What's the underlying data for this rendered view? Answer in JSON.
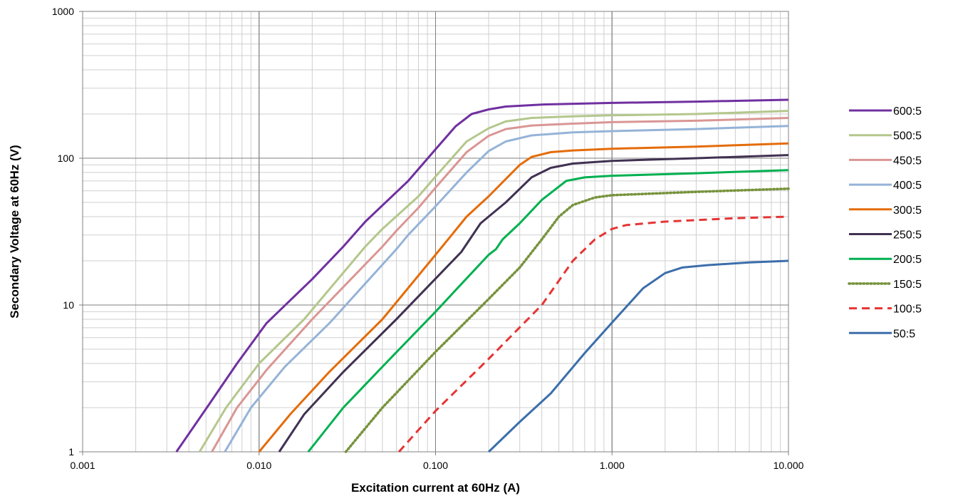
{
  "chart_data": {
    "type": "line",
    "title": "",
    "xlabel": "Excitation current at 60Hz (A)",
    "ylabel": "Secondary Voltage at 60Hz (V)",
    "x_scale": "log",
    "y_scale": "log",
    "xlim": [
      0.001,
      10
    ],
    "ylim": [
      1,
      1000
    ],
    "grid": true,
    "legend_position": "right",
    "x_ticks": [
      {
        "value": 0.001,
        "label": "0.001"
      },
      {
        "value": 0.01,
        "label": "0.010"
      },
      {
        "value": 0.1,
        "label": "0.100"
      },
      {
        "value": 1,
        "label": "1.000"
      },
      {
        "value": 10,
        "label": "10.000"
      }
    ],
    "y_ticks": [
      {
        "value": 1,
        "label": "1"
      },
      {
        "value": 10,
        "label": "10"
      },
      {
        "value": 100,
        "label": "100"
      },
      {
        "value": 1000,
        "label": "1000"
      }
    ],
    "series": [
      {
        "name": "600:5",
        "color": "#7030A0",
        "dash": "solid",
        "points": [
          [
            0.0034,
            1
          ],
          [
            0.0052,
            2.1
          ],
          [
            0.0075,
            4
          ],
          [
            0.011,
            7.5
          ],
          [
            0.02,
            15
          ],
          [
            0.03,
            25
          ],
          [
            0.04,
            37
          ],
          [
            0.07,
            70
          ],
          [
            0.1,
            115
          ],
          [
            0.13,
            165
          ],
          [
            0.16,
            200
          ],
          [
            0.2,
            215
          ],
          [
            0.25,
            225
          ],
          [
            0.4,
            232
          ],
          [
            1,
            238
          ],
          [
            3,
            243
          ],
          [
            10,
            250
          ]
        ]
      },
      {
        "name": "500:5",
        "color": "#B4C78C",
        "dash": "solid",
        "points": [
          [
            0.0046,
            1
          ],
          [
            0.0065,
            2
          ],
          [
            0.01,
            4
          ],
          [
            0.018,
            8
          ],
          [
            0.04,
            25
          ],
          [
            0.05,
            33
          ],
          [
            0.08,
            55
          ],
          [
            0.1,
            75
          ],
          [
            0.15,
            130
          ],
          [
            0.2,
            160
          ],
          [
            0.25,
            178
          ],
          [
            0.35,
            188
          ],
          [
            0.6,
            193
          ],
          [
            1,
            196
          ],
          [
            3,
            200
          ],
          [
            10,
            210
          ]
        ]
      },
      {
        "name": "450:5",
        "color": "#D99694",
        "dash": "solid",
        "points": [
          [
            0.0054,
            1
          ],
          [
            0.0075,
            2
          ],
          [
            0.011,
            3.6
          ],
          [
            0.02,
            8
          ],
          [
            0.05,
            25
          ],
          [
            0.06,
            32
          ],
          [
            0.08,
            46
          ],
          [
            0.1,
            63
          ],
          [
            0.15,
            110
          ],
          [
            0.2,
            142
          ],
          [
            0.25,
            158
          ],
          [
            0.35,
            167
          ],
          [
            0.6,
            172
          ],
          [
            1,
            176
          ],
          [
            3,
            180
          ],
          [
            10,
            188
          ]
        ]
      },
      {
        "name": "400:5",
        "color": "#95B3D7",
        "dash": "solid",
        "points": [
          [
            0.0064,
            1
          ],
          [
            0.009,
            2
          ],
          [
            0.014,
            3.8
          ],
          [
            0.025,
            7.5
          ],
          [
            0.06,
            24
          ],
          [
            0.07,
            30
          ],
          [
            0.1,
            47
          ],
          [
            0.15,
            80
          ],
          [
            0.2,
            112
          ],
          [
            0.25,
            130
          ],
          [
            0.35,
            143
          ],
          [
            0.6,
            150
          ],
          [
            1,
            153
          ],
          [
            3,
            158
          ],
          [
            10,
            166
          ]
        ]
      },
      {
        "name": "300:5",
        "color": "#E46C0A",
        "dash": "solid",
        "points": [
          [
            0.01,
            1
          ],
          [
            0.015,
            1.8
          ],
          [
            0.025,
            3.5
          ],
          [
            0.05,
            8
          ],
          [
            0.1,
            22
          ],
          [
            0.15,
            40
          ],
          [
            0.2,
            55
          ],
          [
            0.3,
            90
          ],
          [
            0.35,
            102
          ],
          [
            0.45,
            110
          ],
          [
            0.6,
            113
          ],
          [
            1,
            116
          ],
          [
            3,
            120
          ],
          [
            10,
            126
          ]
        ]
      },
      {
        "name": "250:5",
        "color": "#403151",
        "dash": "solid",
        "points": [
          [
            0.013,
            1
          ],
          [
            0.018,
            1.8
          ],
          [
            0.03,
            3.5
          ],
          [
            0.06,
            8
          ],
          [
            0.14,
            23
          ],
          [
            0.18,
            36
          ],
          [
            0.25,
            50
          ],
          [
            0.35,
            74
          ],
          [
            0.45,
            86
          ],
          [
            0.6,
            92
          ],
          [
            1,
            96
          ],
          [
            3,
            100
          ],
          [
            10,
            105
          ]
        ]
      },
      {
        "name": "200:5",
        "color": "#00B050",
        "dash": "solid",
        "points": [
          [
            0.019,
            1
          ],
          [
            0.03,
            2
          ],
          [
            0.05,
            3.8
          ],
          [
            0.1,
            9
          ],
          [
            0.2,
            22
          ],
          [
            0.22,
            24
          ],
          [
            0.24,
            28
          ],
          [
            0.3,
            36
          ],
          [
            0.4,
            52
          ],
          [
            0.55,
            70
          ],
          [
            0.7,
            74
          ],
          [
            1,
            76
          ],
          [
            3,
            79
          ],
          [
            10,
            83
          ]
        ]
      },
      {
        "name": "150:5",
        "color": "#77933C",
        "dash": "dot",
        "points": [
          [
            0.031,
            1
          ],
          [
            0.05,
            2
          ],
          [
            0.1,
            4.8
          ],
          [
            0.2,
            11
          ],
          [
            0.3,
            18
          ],
          [
            0.4,
            28
          ],
          [
            0.5,
            40
          ],
          [
            0.6,
            48
          ],
          [
            0.8,
            54
          ],
          [
            1,
            56
          ],
          [
            3,
            59
          ],
          [
            10,
            62
          ]
        ]
      },
      {
        "name": "100:5",
        "color": "#E53535",
        "dash": "dash",
        "points": [
          [
            0.062,
            1
          ],
          [
            0.1,
            1.9
          ],
          [
            0.2,
            4.3
          ],
          [
            0.4,
            10
          ],
          [
            0.6,
            20
          ],
          [
            0.8,
            28
          ],
          [
            1,
            33
          ],
          [
            1.2,
            35
          ],
          [
            2,
            37
          ],
          [
            5,
            39
          ],
          [
            10,
            40
          ]
        ]
      },
      {
        "name": "50:5",
        "color": "#3C6EAB",
        "dash": "solid",
        "points": [
          [
            0.2,
            1
          ],
          [
            0.3,
            1.6
          ],
          [
            0.45,
            2.5
          ],
          [
            0.7,
            4.7
          ],
          [
            1,
            7.6
          ],
          [
            1.5,
            13
          ],
          [
            2,
            16.5
          ],
          [
            2.5,
            18
          ],
          [
            3.5,
            18.7
          ],
          [
            6,
            19.5
          ],
          [
            10,
            20
          ]
        ]
      }
    ]
  }
}
